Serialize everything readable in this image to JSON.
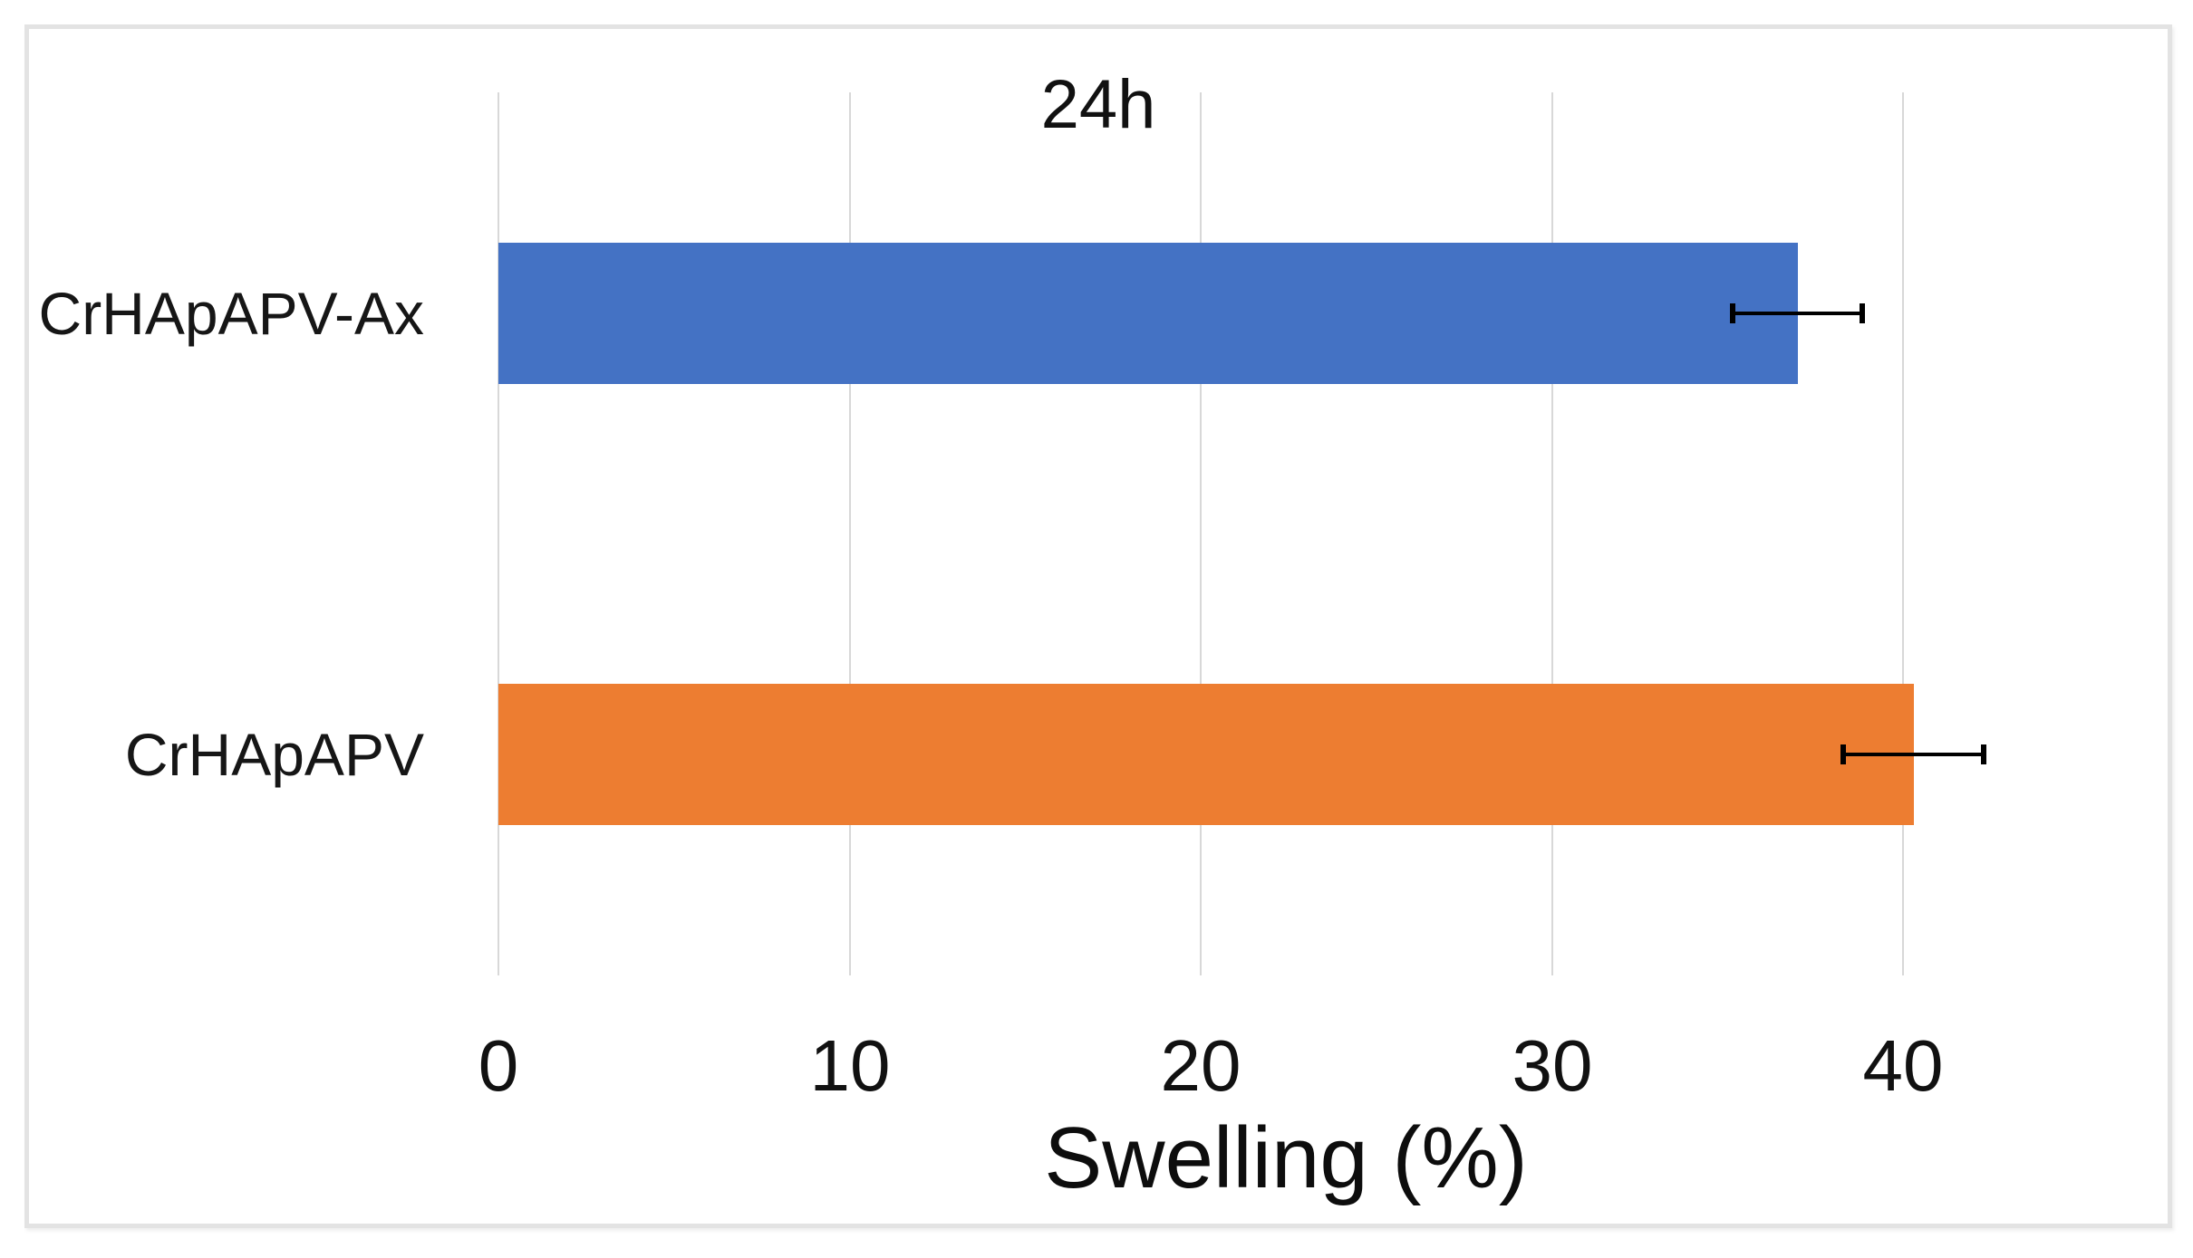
{
  "chart_data": {
    "type": "bar",
    "orientation": "horizontal",
    "title": "24h",
    "xlabel": "Swelling (%)",
    "categories": [
      "CrHApAPV-Ax",
      "CrHApAPV"
    ],
    "values": [
      37.0,
      40.3
    ],
    "errors": [
      1.85,
      2.0
    ],
    "bar_colors": [
      "#4472C4",
      "#ED7D31"
    ],
    "xlim": [
      0,
      44.85
    ],
    "xticks": [
      0,
      10,
      20,
      30,
      40
    ],
    "xtick_labels": [
      "0",
      "10",
      "20",
      "30",
      "40"
    ],
    "grid": true,
    "gridline_color": "#d8d8d8",
    "error_bar_color": "#000000",
    "legend": "none"
  }
}
